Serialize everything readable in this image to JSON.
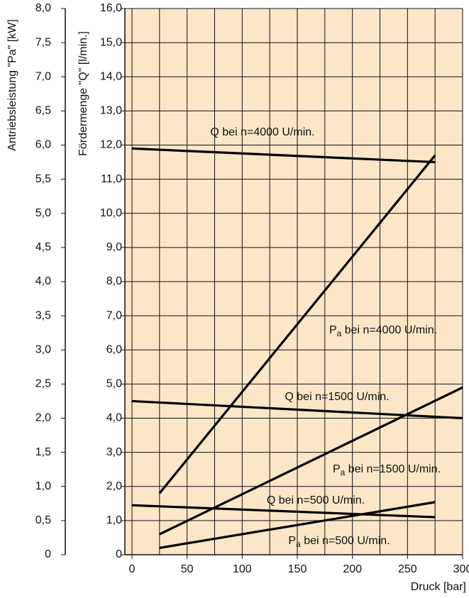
{
  "chart_data": {
    "type": "line",
    "xlabel": "Druck [bar]",
    "ylabel": "Antriebsleistung \"Pa\" [kW]",
    "y2label": "Fördermenge \"Q\" [l/min.]",
    "xlim": [
      0,
      300
    ],
    "xticks": [
      0,
      50,
      100,
      150,
      200,
      250,
      300
    ],
    "xgrid": [
      0,
      25,
      50,
      75,
      100,
      125,
      150,
      175,
      200,
      225,
      250,
      275,
      300
    ],
    "ylim": [
      0,
      8
    ],
    "yticks": [
      {
        "value": 0,
        "label": "0"
      },
      {
        "value": 0.5,
        "label": "0,5"
      },
      {
        "value": 1,
        "label": "1,0"
      },
      {
        "value": 1.5,
        "label": "1,5"
      },
      {
        "value": 2,
        "label": "2,0"
      },
      {
        "value": 2.5,
        "label": "2,5"
      },
      {
        "value": 3,
        "label": "3,0"
      },
      {
        "value": 3.5,
        "label": "3,5"
      },
      {
        "value": 4,
        "label": "4,0"
      },
      {
        "value": 4.5,
        "label": "4,5"
      },
      {
        "value": 5,
        "label": "5,0"
      },
      {
        "value": 5.5,
        "label": "5,5"
      },
      {
        "value": 6,
        "label": "6,0"
      },
      {
        "value": 6.5,
        "label": "6,5"
      },
      {
        "value": 7,
        "label": "7,0"
      },
      {
        "value": 7.5,
        "label": "7,5"
      },
      {
        "value": 8,
        "label": "8,0"
      }
    ],
    "y2lim": [
      0,
      16
    ],
    "y2ticks": [
      {
        "value": 0,
        "label": "0"
      },
      {
        "value": 1,
        "label": "1,0"
      },
      {
        "value": 2,
        "label": "2,0"
      },
      {
        "value": 3,
        "label": "3,0"
      },
      {
        "value": 4,
        "label": "4,0"
      },
      {
        "value": 5,
        "label": "5,0"
      },
      {
        "value": 6,
        "label": "6,0"
      },
      {
        "value": 7,
        "label": "7,0"
      },
      {
        "value": 8,
        "label": "8,0"
      },
      {
        "value": 9,
        "label": "9,0"
      },
      {
        "value": 10,
        "label": "10,0"
      },
      {
        "value": 11,
        "label": "11,0"
      },
      {
        "value": 12,
        "label": "12,0"
      },
      {
        "value": 13,
        "label": "13,0"
      },
      {
        "value": 14,
        "label": "14,0"
      },
      {
        "value": 15,
        "label": "15,0"
      },
      {
        "value": 16,
        "label": "16,0"
      }
    ],
    "grid": true,
    "background": "#fce6c8",
    "series": [
      {
        "name": "Q bei n=4000 U/min.",
        "axis": "y2",
        "color": "#000000",
        "x": [
          0,
          275
        ],
        "values": [
          11.9,
          11.5
        ]
      },
      {
        "name": "Pa bei n=4000 U/min.",
        "axis": "y",
        "color": "#000000",
        "x": [
          25,
          275
        ],
        "values": [
          0.9,
          5.85
        ]
      },
      {
        "name": "Q bei n=1500 U/min.",
        "axis": "y2",
        "color": "#000000",
        "x": [
          0,
          300
        ],
        "values": [
          4.5,
          4.0
        ]
      },
      {
        "name": "Pa bei n=1500 U/min.",
        "axis": "y",
        "color": "#000000",
        "x": [
          25,
          300
        ],
        "values": [
          0.3,
          2.45
        ]
      },
      {
        "name": "Q bei n=500 U/min.",
        "axis": "y2",
        "color": "#000000",
        "x": [
          0,
          275
        ],
        "values": [
          1.45,
          1.1
        ]
      },
      {
        "name": "Pa bei n=500 U/min.",
        "axis": "y",
        "color": "#000000",
        "x": [
          25,
          275
        ],
        "values": [
          0.1,
          0.77
        ]
      }
    ]
  }
}
